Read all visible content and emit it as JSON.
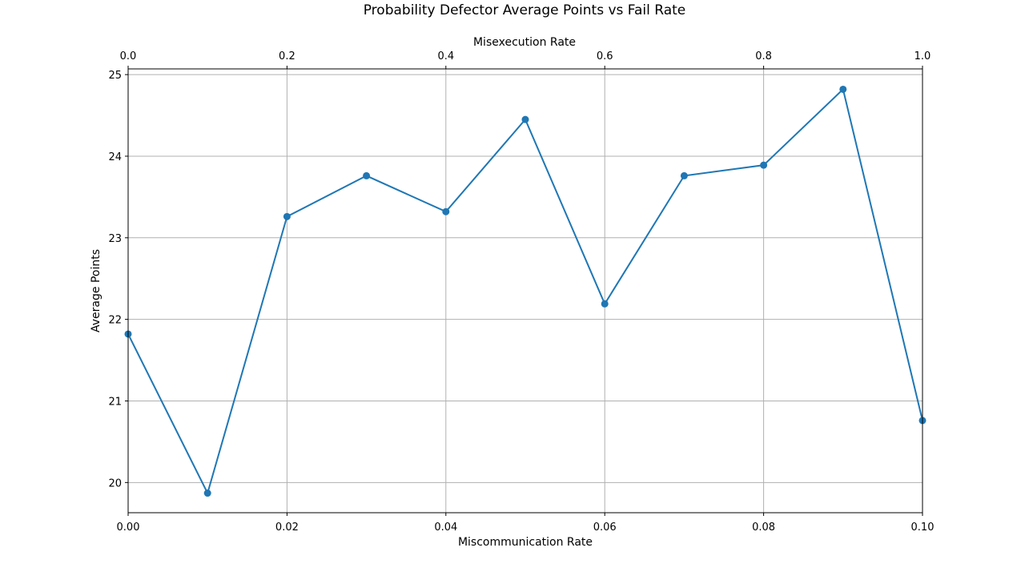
{
  "chart_data": {
    "type": "line",
    "title": "Probability Defector Average Points vs Fail Rate",
    "xlabel": "Miscommunication Rate",
    "ylabel": "Average Points",
    "x2label": "Misexecution Rate",
    "xlim": [
      0.0,
      0.1
    ],
    "ylim": [
      19.63,
      25.07
    ],
    "x2lim": [
      0.0,
      1.0
    ],
    "grid": true,
    "marker": "circle",
    "color": "#1f77b4",
    "x_ticks": [
      "0.00",
      "0.02",
      "0.04",
      "0.06",
      "0.08",
      "0.10"
    ],
    "x2_ticks": [
      "0.0",
      "0.2",
      "0.4",
      "0.6",
      "0.8",
      "1.0"
    ],
    "y_ticks": [
      "20",
      "21",
      "22",
      "23",
      "24",
      "25"
    ],
    "series": [
      {
        "x": [
          0.0,
          0.01,
          0.02,
          0.03,
          0.04,
          0.05,
          0.06,
          0.07,
          0.08,
          0.09,
          0.1
        ],
        "values": [
          21.82,
          19.87,
          23.26,
          23.76,
          23.32,
          24.45,
          22.19,
          23.76,
          23.89,
          24.82,
          20.76
        ]
      }
    ]
  }
}
